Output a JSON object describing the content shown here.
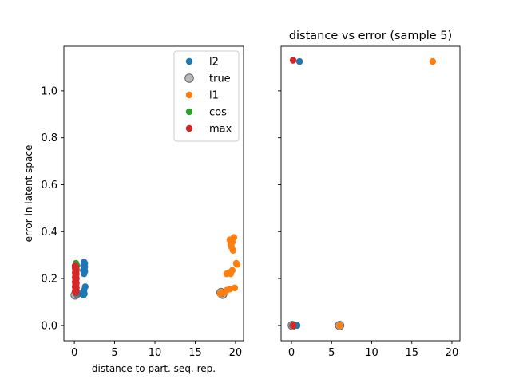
{
  "chart_data": [
    {
      "type": "scatter",
      "title": "",
      "xlabel": "distance to part. seq. rep.",
      "ylabel": "error in latent space",
      "xlim": [
        -1.3,
        21.0
      ],
      "ylim": [
        -0.065,
        1.19
      ],
      "xticks": [
        0,
        5,
        10,
        15,
        20
      ],
      "yticks": [
        0.0,
        0.2,
        0.4,
        0.6,
        0.8,
        1.0
      ],
      "ytick_labels": [
        "0.0",
        "0.2",
        "0.4",
        "0.6",
        "0.8",
        "1.0"
      ],
      "legend": {
        "placement": "top-right",
        "entries": [
          "l2",
          "true",
          "l1",
          "cos",
          "max"
        ]
      },
      "series": [
        {
          "name": "l2",
          "color": "#1f77b4",
          "points": [
            [
              1.2,
              0.27
            ],
            [
              1.3,
              0.265
            ],
            [
              1.25,
              0.26
            ],
            [
              1.15,
              0.255
            ],
            [
              1.3,
              0.25
            ],
            [
              1.2,
              0.245
            ],
            [
              1.25,
              0.24
            ],
            [
              1.1,
              0.235
            ],
            [
              1.3,
              0.23
            ],
            [
              1.2,
              0.22
            ],
            [
              1.35,
              0.165
            ],
            [
              1.2,
              0.15
            ],
            [
              1.1,
              0.14
            ],
            [
              1.25,
              0.135
            ],
            [
              1.15,
              0.13
            ],
            [
              0.6,
              0.135
            ],
            [
              0.3,
              0.13
            ]
          ]
        },
        {
          "name": "true",
          "color": "#7f7f7f",
          "points": [
            [
              0.1,
              0.13
            ],
            [
              18.2,
              0.14
            ],
            [
              18.4,
              0.133
            ]
          ]
        },
        {
          "name": "l1",
          "color": "#ff7f0e",
          "points": [
            [
              19.8,
              0.375
            ],
            [
              19.3,
              0.365
            ],
            [
              19.6,
              0.355
            ],
            [
              19.4,
              0.345
            ],
            [
              19.5,
              0.335
            ],
            [
              19.7,
              0.32
            ],
            [
              20.1,
              0.265
            ],
            [
              20.2,
              0.26
            ],
            [
              19.6,
              0.235
            ],
            [
              19.2,
              0.225
            ],
            [
              18.9,
              0.22
            ],
            [
              19.4,
              0.22
            ],
            [
              19.9,
              0.16
            ],
            [
              19.3,
              0.155
            ],
            [
              18.9,
              0.15
            ],
            [
              18.6,
              0.14
            ],
            [
              18.3,
              0.14
            ],
            [
              18.1,
              0.135
            ]
          ]
        },
        {
          "name": "cos",
          "color": "#2ca02c",
          "points": [
            [
              0.2,
              0.265
            ],
            [
              0.3,
              0.255
            ],
            [
              0.15,
              0.245
            ],
            [
              0.25,
              0.235
            ]
          ]
        },
        {
          "name": "max",
          "color": "#d62728",
          "points": [
            [
              0.1,
              0.255
            ],
            [
              0.2,
              0.25
            ],
            [
              0.1,
              0.245
            ],
            [
              0.25,
              0.24
            ],
            [
              0.15,
              0.235
            ],
            [
              0.2,
              0.23
            ],
            [
              0.1,
              0.225
            ],
            [
              0.25,
              0.22
            ],
            [
              0.15,
              0.215
            ],
            [
              0.2,
              0.21
            ],
            [
              0.1,
              0.205
            ],
            [
              0.25,
              0.2
            ],
            [
              0.15,
              0.195
            ],
            [
              0.2,
              0.19
            ],
            [
              0.1,
              0.185
            ],
            [
              0.25,
              0.18
            ],
            [
              0.15,
              0.175
            ],
            [
              0.2,
              0.17
            ],
            [
              0.1,
              0.165
            ],
            [
              0.25,
              0.16
            ],
            [
              0.15,
              0.155
            ],
            [
              0.2,
              0.15
            ],
            [
              0.1,
              0.145
            ],
            [
              0.2,
              0.14
            ]
          ]
        }
      ]
    },
    {
      "type": "scatter",
      "title": "distance vs error (sample 5)",
      "xlabel": "",
      "ylabel": "",
      "xlim": [
        -1.3,
        21.0
      ],
      "ylim": [
        -0.065,
        1.19
      ],
      "xticks": [
        0,
        5,
        10,
        15,
        20
      ],
      "yticks": [
        0.0,
        0.2,
        0.4,
        0.6,
        0.8,
        1.0
      ],
      "ytick_labels": [
        "",
        "",
        "",
        "",
        "",
        ""
      ],
      "series": [
        {
          "name": "l2",
          "color": "#1f77b4",
          "points": [
            [
              1.0,
              1.125
            ],
            [
              0.7,
              0.0
            ],
            [
              0.4,
              0.0
            ],
            [
              0.1,
              0.0
            ]
          ]
        },
        {
          "name": "true",
          "color": "#7f7f7f",
          "points": [
            [
              0.1,
              0.0
            ],
            [
              6.0,
              0.0
            ]
          ]
        },
        {
          "name": "l1",
          "color": "#ff7f0e",
          "points": [
            [
              17.6,
              1.125
            ],
            [
              6.0,
              0.0
            ]
          ]
        },
        {
          "name": "cos",
          "color": "#2ca02c",
          "points": [
            [
              0.2,
              0.0
            ]
          ]
        },
        {
          "name": "max",
          "color": "#d62728",
          "points": [
            [
              0.2,
              1.13
            ],
            [
              0.2,
              0.0
            ]
          ]
        }
      ]
    }
  ]
}
